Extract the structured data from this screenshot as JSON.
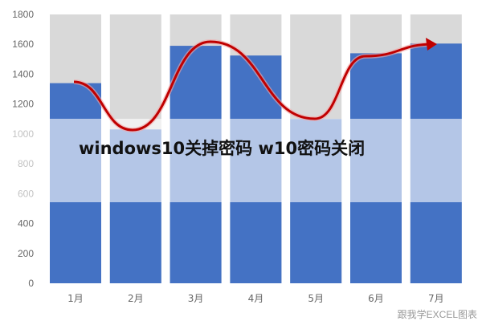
{
  "overlay_title": "windows10关掉密码 w10密码关闭",
  "watermark": "跟我学EXCEL图表",
  "chart_data": {
    "type": "bar",
    "categories": [
      "1月",
      "2月",
      "3月",
      "4月",
      "5月",
      "6月",
      "7月"
    ],
    "values": [
      1340,
      1030,
      1590,
      1525,
      1100,
      1540,
      1605
    ],
    "background_max": 1800,
    "ylim": [
      0,
      1800
    ],
    "yticks": [
      0,
      200,
      400,
      600,
      800,
      1000,
      1200,
      1400,
      1600,
      1800
    ],
    "trend_line": "smoothed red arrow curve through bar tops",
    "colors": {
      "bar": "#4472C4",
      "background_bar": "#D9D9D9",
      "trend": "#C00000"
    },
    "grid": false
  }
}
